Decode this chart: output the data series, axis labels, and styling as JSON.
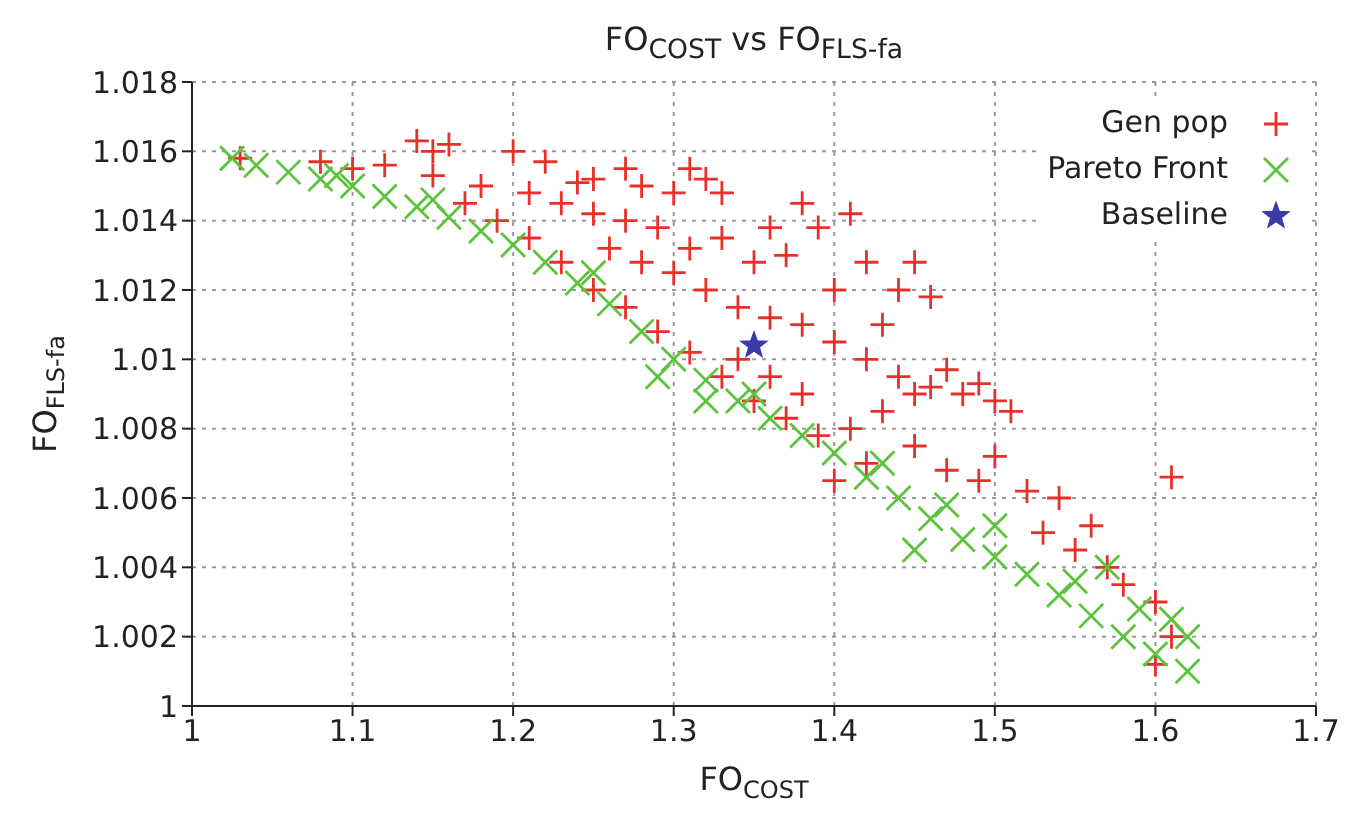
{
  "chart_data": {
    "type": "scatter",
    "title": "FO$_{COST}$ vs FO$_{FLS-fa}$",
    "xlabel": "FO$_{COST}$",
    "ylabel": "FO$_{FLS-fa}$",
    "xlim": [
      1,
      1.7
    ],
    "xticks": [
      1,
      1.1,
      1.2,
      1.3,
      1.4,
      1.5,
      1.6,
      1.7
    ],
    "ylim": [
      1,
      1.018
    ],
    "yticks": [
      1,
      1.002,
      1.004,
      1.006,
      1.008,
      1.01,
      1.012,
      1.014,
      1.016,
      1.018
    ],
    "grid": true,
    "legend": "top right",
    "series": [
      {
        "name": "Gen pop",
        "color": "#e8302a",
        "marker": "cross",
        "x": [
          1.03,
          1.08,
          1.1,
          1.12,
          1.14,
          1.15,
          1.15,
          1.16,
          1.17,
          1.18,
          1.19,
          1.2,
          1.21,
          1.21,
          1.22,
          1.23,
          1.23,
          1.24,
          1.25,
          1.25,
          1.25,
          1.26,
          1.27,
          1.27,
          1.27,
          1.28,
          1.28,
          1.29,
          1.29,
          1.3,
          1.3,
          1.31,
          1.31,
          1.31,
          1.32,
          1.32,
          1.33,
          1.33,
          1.33,
          1.34,
          1.34,
          1.35,
          1.35,
          1.36,
          1.36,
          1.36,
          1.37,
          1.37,
          1.38,
          1.38,
          1.38,
          1.39,
          1.39,
          1.4,
          1.4,
          1.4,
          1.41,
          1.41,
          1.42,
          1.42,
          1.42,
          1.43,
          1.43,
          1.44,
          1.44,
          1.45,
          1.45,
          1.45,
          1.46,
          1.46,
          1.47,
          1.47,
          1.48,
          1.49,
          1.49,
          1.5,
          1.5,
          1.51,
          1.52,
          1.53,
          1.54,
          1.55,
          1.56,
          1.57,
          1.58,
          1.6,
          1.6,
          1.61,
          1.61
        ],
        "values": [
          1.0158,
          1.0157,
          1.0155,
          1.0156,
          1.0163,
          1.016,
          1.0153,
          1.0162,
          1.0145,
          1.015,
          1.014,
          1.016,
          1.0148,
          1.0135,
          1.0157,
          1.0145,
          1.0128,
          1.0151,
          1.0152,
          1.0142,
          1.012,
          1.0132,
          1.0155,
          1.014,
          1.0115,
          1.015,
          1.0128,
          1.0138,
          1.0108,
          1.0148,
          1.0125,
          1.0155,
          1.0132,
          1.0102,
          1.0152,
          1.012,
          1.0148,
          1.0135,
          1.0095,
          1.0115,
          1.01,
          1.0128,
          1.0088,
          1.0138,
          1.0112,
          1.0095,
          1.013,
          1.0083,
          1.0145,
          1.011,
          1.009,
          1.0138,
          1.0078,
          1.012,
          1.0105,
          1.0065,
          1.0142,
          1.008,
          1.0128,
          1.01,
          1.007,
          1.011,
          1.0085,
          1.012,
          1.0095,
          1.0128,
          1.009,
          1.0075,
          1.0118,
          1.0092,
          1.0097,
          1.0068,
          1.009,
          1.0093,
          1.0065,
          1.0088,
          1.0072,
          1.0085,
          1.0062,
          1.005,
          1.006,
          1.0045,
          1.0052,
          1.004,
          1.0035,
          1.003,
          1.0012,
          1.0066,
          1.002
        ]
      },
      {
        "name": "Pareto Front",
        "color": "#5cc43c",
        "marker": "x",
        "x": [
          1.025,
          1.04,
          1.06,
          1.08,
          1.09,
          1.1,
          1.12,
          1.14,
          1.15,
          1.16,
          1.18,
          1.2,
          1.22,
          1.24,
          1.25,
          1.26,
          1.28,
          1.29,
          1.3,
          1.32,
          1.32,
          1.34,
          1.35,
          1.36,
          1.38,
          1.4,
          1.42,
          1.43,
          1.44,
          1.45,
          1.46,
          1.47,
          1.48,
          1.5,
          1.5,
          1.52,
          1.54,
          1.55,
          1.56,
          1.57,
          1.58,
          1.59,
          1.6,
          1.61,
          1.62,
          1.62
        ],
        "values": [
          1.0158,
          1.0156,
          1.0154,
          1.0152,
          1.0153,
          1.015,
          1.0147,
          1.0144,
          1.0146,
          1.0141,
          1.0137,
          1.0133,
          1.0128,
          1.0122,
          1.0125,
          1.0116,
          1.0108,
          1.0095,
          1.01,
          1.0094,
          1.0088,
          1.0088,
          1.009,
          1.0083,
          1.0078,
          1.0073,
          1.0066,
          1.007,
          1.006,
          1.0045,
          1.0054,
          1.0058,
          1.0048,
          1.0043,
          1.0052,
          1.0038,
          1.0032,
          1.0036,
          1.0026,
          1.004,
          1.002,
          1.0028,
          1.0015,
          1.0025,
          1.001,
          1.002
        ]
      },
      {
        "name": "Baseline",
        "color": "#3a3aa8",
        "marker": "star",
        "x": [
          1.35
        ],
        "values": [
          1.0104
        ]
      }
    ]
  }
}
